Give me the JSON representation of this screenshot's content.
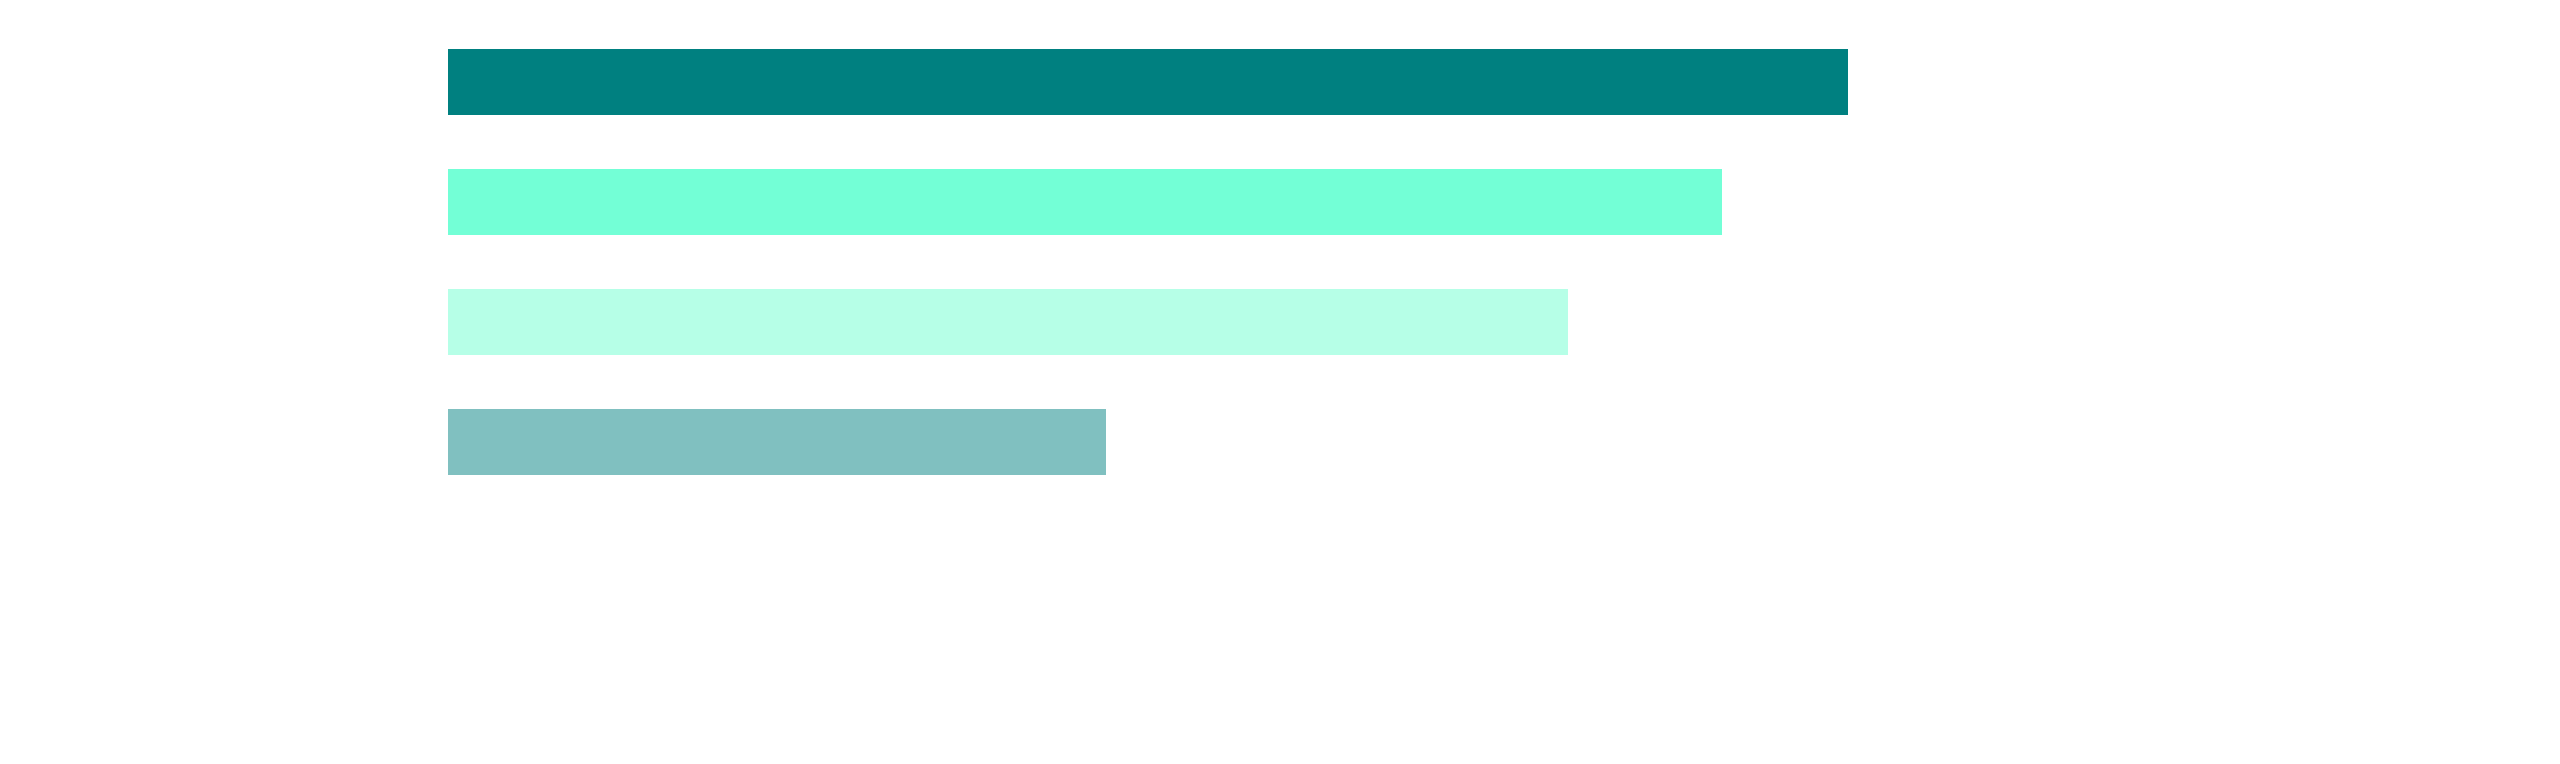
{
  "chart_data": {
    "type": "bar",
    "orientation": "horizontal",
    "title": "",
    "xlabel": "",
    "ylabel": "",
    "grid": false,
    "legend": "none",
    "xlim": [
      0,
      100
    ],
    "series": [
      {
        "values": [
          100,
          91,
          80,
          47
        ],
        "colors": [
          "#008080",
          "#73ffd6",
          "#b6ffe7",
          "#80c0c0"
        ]
      }
    ]
  }
}
